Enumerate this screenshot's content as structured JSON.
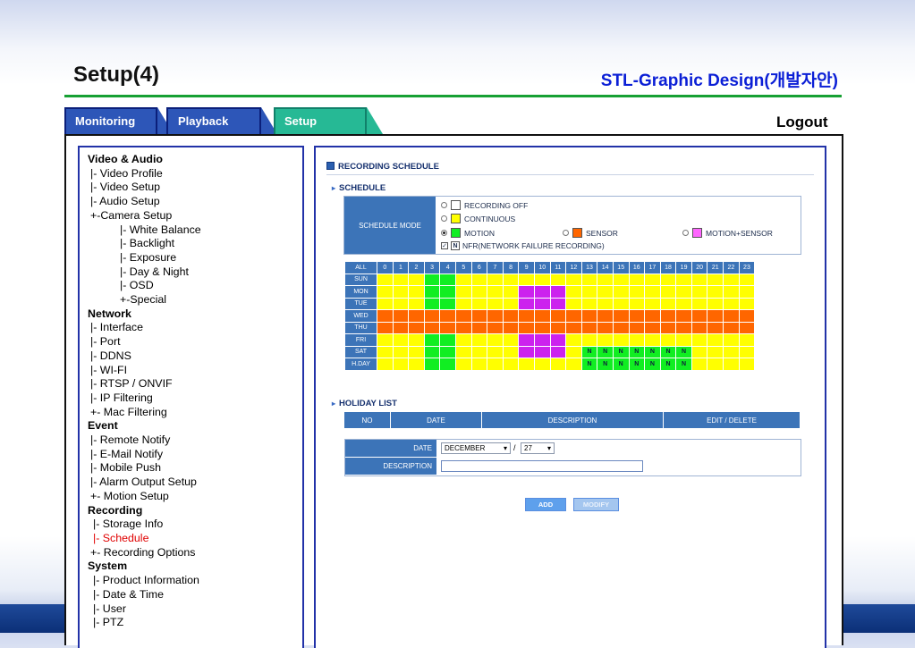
{
  "slide": {
    "title": "Setup(4)",
    "subtitle": "STL-Graphic Design(개발자안)"
  },
  "tabs": [
    {
      "label": "Monitoring"
    },
    {
      "label": "Playback"
    },
    {
      "label": "Setup"
    }
  ],
  "logout_label": "Logout",
  "menu": [
    {
      "text": "Video & Audio",
      "level": "sec"
    },
    {
      "text": "|- Video Profile",
      "level": "i1"
    },
    {
      "text": "|- Video Setup",
      "level": "i1"
    },
    {
      "text": "|- Audio Setup",
      "level": "i1"
    },
    {
      "text": "+-Camera Setup",
      "level": "i1"
    },
    {
      "text": "|- White Balance",
      "level": "i2"
    },
    {
      "text": "|- Backlight",
      "level": "i2"
    },
    {
      "text": "|- Exposure",
      "level": "i2"
    },
    {
      "text": "|- Day & Night",
      "level": "i2"
    },
    {
      "text": "|- OSD",
      "level": "i2"
    },
    {
      "text": "+-Special",
      "level": "i2"
    },
    {
      "text": "Network",
      "level": "sec"
    },
    {
      "text": "|- Interface",
      "level": "i1"
    },
    {
      "text": "|- Port",
      "level": "i1"
    },
    {
      "text": "|- DDNS",
      "level": "i1"
    },
    {
      "text": "|- WI-FI",
      "level": "i1"
    },
    {
      "text": "|- RTSP / ONVIF",
      "level": "i1"
    },
    {
      "text": "|- IP Filtering",
      "level": "i1"
    },
    {
      "text": "+- Mac Filtering",
      "level": "i1"
    },
    {
      "text": "Event",
      "level": "sec"
    },
    {
      "text": "|- Remote Notify",
      "level": "i1"
    },
    {
      "text": "|- E-Mail Notify",
      "level": "i1"
    },
    {
      "text": "|- Mobile Push",
      "level": "i1"
    },
    {
      "text": "|- Alarm Output Setup",
      "level": "i1"
    },
    {
      "text": "+- Motion Setup",
      "level": "i1"
    },
    {
      "text": "Recording",
      "level": "sec"
    },
    {
      "text": "|- Storage Info",
      "level": "i1b"
    },
    {
      "text": "|- Schedule",
      "level": "i1b",
      "active": true
    },
    {
      "text": "+- Recording Options",
      "level": "i1"
    },
    {
      "text": "System",
      "level": "sec"
    },
    {
      "text": "|- Product Information",
      "level": "i1b"
    },
    {
      "text": "|- Date & Time",
      "level": "i1b"
    },
    {
      "text": "|- User",
      "level": "i1b"
    },
    {
      "text": "|- PTZ",
      "level": "i1b"
    }
  ],
  "recording": {
    "title": "RECORDING SCHEDULE",
    "schedule_title": "SCHEDULE",
    "mode_label": "SCHEDULE MODE",
    "options": {
      "off": "RECORDING OFF",
      "continuous": "CONTINUOUS",
      "motion": "MOTION",
      "sensor": "SENSOR",
      "motion_sensor": "MOTION+SENSOR",
      "nfr": "NFR(NETWORK FAILURE RECORDING)",
      "nfr_mark": "N"
    },
    "selected_mode": "motion",
    "colors": {
      "off": "#ffffff",
      "continuous": "#ffff00",
      "motion": "#11ee22",
      "sensor": "#ff6600",
      "motion_sensor": "#ff66ff"
    },
    "grid": {
      "all_label": "ALL",
      "hours": [
        "0",
        "1",
        "2",
        "3",
        "4",
        "5",
        "6",
        "7",
        "8",
        "9",
        "10",
        "11",
        "12",
        "13",
        "14",
        "15",
        "16",
        "17",
        "18",
        "19",
        "20",
        "21",
        "22",
        "23"
      ],
      "rows": [
        {
          "day": "SUN",
          "cells": "yyyggyyyyyyyyyyyyyyyyyyy",
          "nfr": []
        },
        {
          "day": "MON",
          "cells": "yyyggyyyypppyyyyyyyyyyyy",
          "nfr": []
        },
        {
          "day": "TUE",
          "cells": "yyyggyyyypppyyyyyyyyyyyy",
          "nfr": []
        },
        {
          "day": "WED",
          "cells": "oooooooooooooooooooooooo",
          "nfr": []
        },
        {
          "day": "THU",
          "cells": "oooooooooooooooooooooooo",
          "nfr": []
        },
        {
          "day": "FRI",
          "cells": "yyyggyyyypppyyyyyyyyyyyy",
          "nfr": []
        },
        {
          "day": "SAT",
          "cells": "yyyggyyyypppygggggggyyyy",
          "nfr": [
            13,
            14,
            15,
            16,
            17,
            18,
            19
          ]
        },
        {
          "day": "H.DAY",
          "cells": "yyyggyyyyyyyygggggggyyyy",
          "nfr": [
            13,
            14,
            15,
            16,
            17,
            18,
            19
          ]
        }
      ]
    },
    "holiday_title": "HOLIDAY LIST",
    "holiday_columns": [
      "NO",
      "DATE",
      "DESCRIPTION",
      "EDIT / DELETE"
    ],
    "form": {
      "date_label": "DATE",
      "month": "DECEMBER",
      "separator": "/",
      "day": "27",
      "description_label": "DESCRIPTION",
      "description_value": ""
    },
    "add_label": "ADD",
    "modify_label": "MODIFY"
  }
}
